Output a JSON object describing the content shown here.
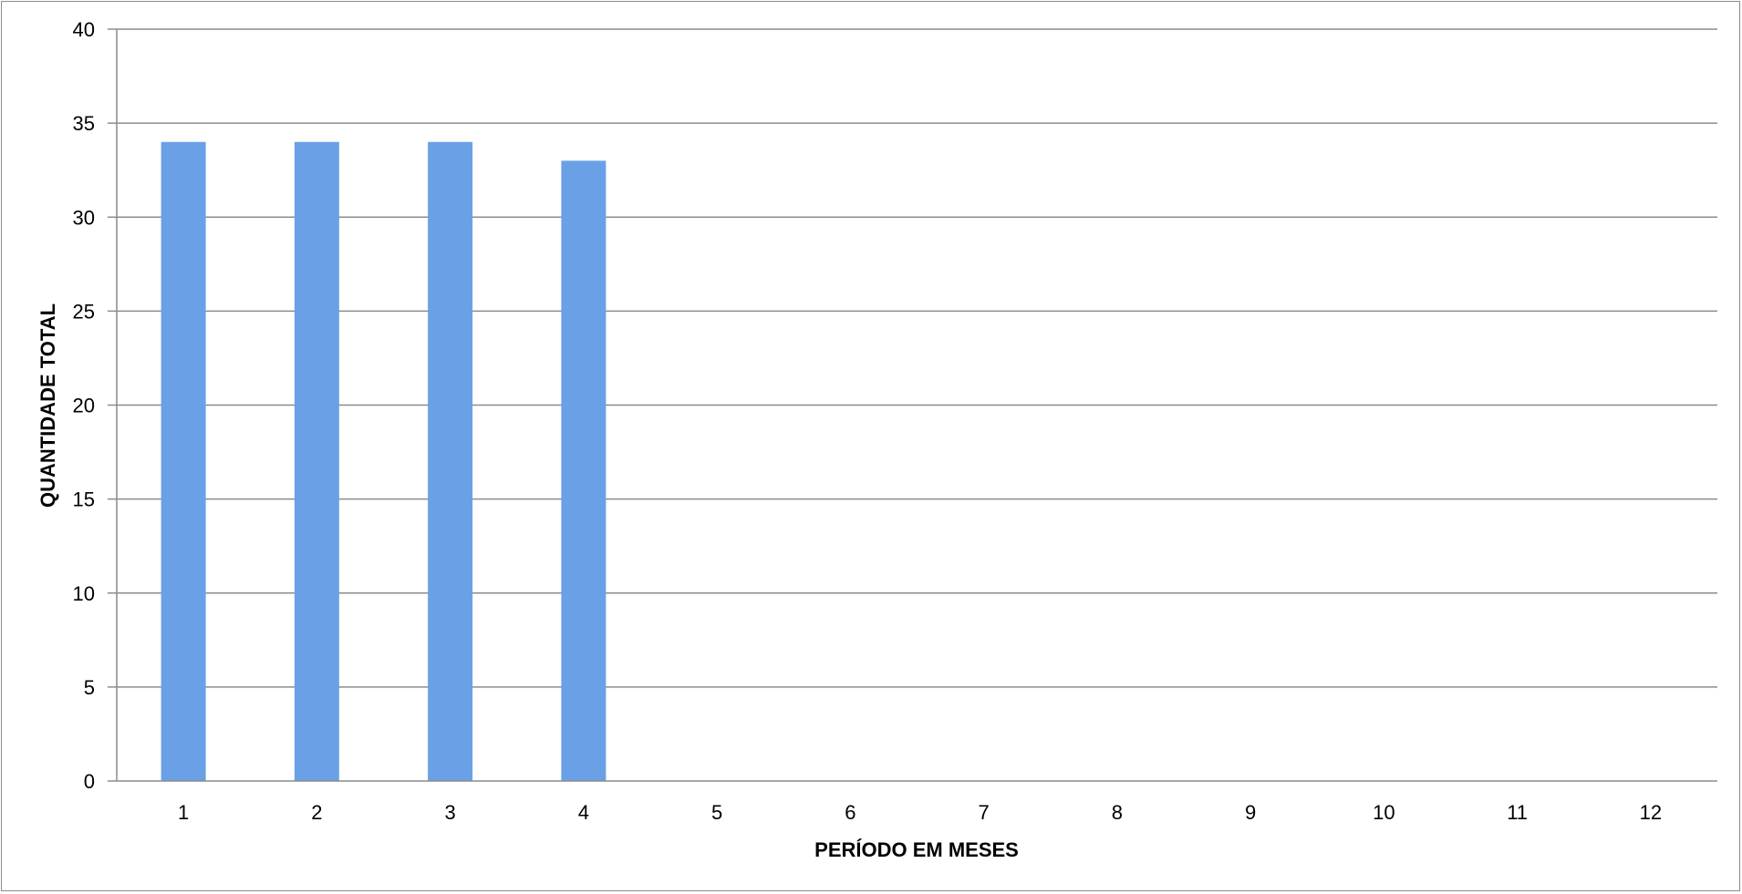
{
  "chart_data": {
    "type": "bar",
    "title": "",
    "xlabel": "PERÍODO EM MESES",
    "ylabel": "QUANTIDADE TOTAL",
    "categories": [
      "1",
      "2",
      "3",
      "4",
      "5",
      "6",
      "7",
      "8",
      "9",
      "10",
      "11",
      "12"
    ],
    "series": [
      {
        "values": [
          34,
          34,
          34,
          33,
          null,
          null,
          null,
          null,
          null,
          null,
          null,
          null
        ]
      }
    ],
    "ylim": [
      0,
      40
    ],
    "yticks": [
      0,
      5,
      10,
      15,
      20,
      25,
      30,
      35,
      40
    ],
    "grid": true,
    "legend": "none",
    "colors": {
      "bar": "#6aa1e6",
      "grid": "#8c8c8c",
      "axis": "#8c8c8c"
    }
  }
}
